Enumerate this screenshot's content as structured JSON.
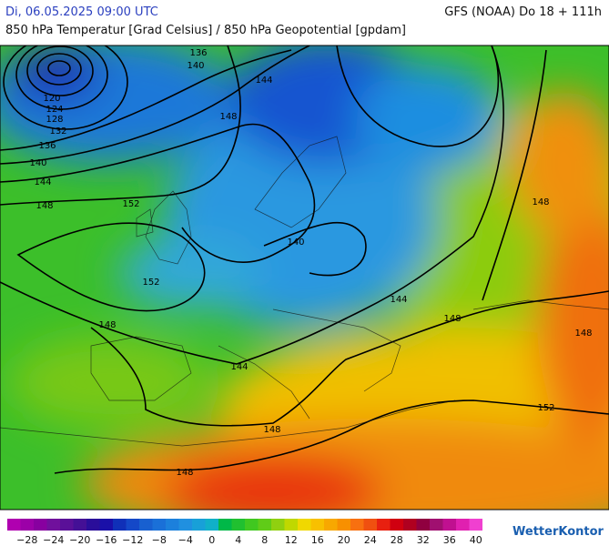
{
  "header": {
    "datetime": "Di, 06.05.2025 09:00 UTC",
    "model": "GFS (NOAA) Do 18 + 111h",
    "subtitle": "850 hPa Temperatur [Grad Celsius] / 850 hPa Geopotential [gpdam]"
  },
  "map": {
    "contour_labels": [
      "136",
      "140",
      "144",
      "120",
      "124",
      "128",
      "132",
      "136",
      "140",
      "144",
      "148",
      "148",
      "152",
      "152",
      "140",
      "144",
      "148",
      "148",
      "144",
      "148",
      "148",
      "152",
      "148",
      "148"
    ]
  },
  "legend": {
    "ticks": [
      "−28",
      "−24",
      "−20",
      "−16",
      "−12",
      "−8",
      "−4",
      "0",
      "4",
      "8",
      "12",
      "16",
      "20",
      "24",
      "28",
      "32",
      "36",
      "40"
    ]
  },
  "brand": "WetterKontor"
}
